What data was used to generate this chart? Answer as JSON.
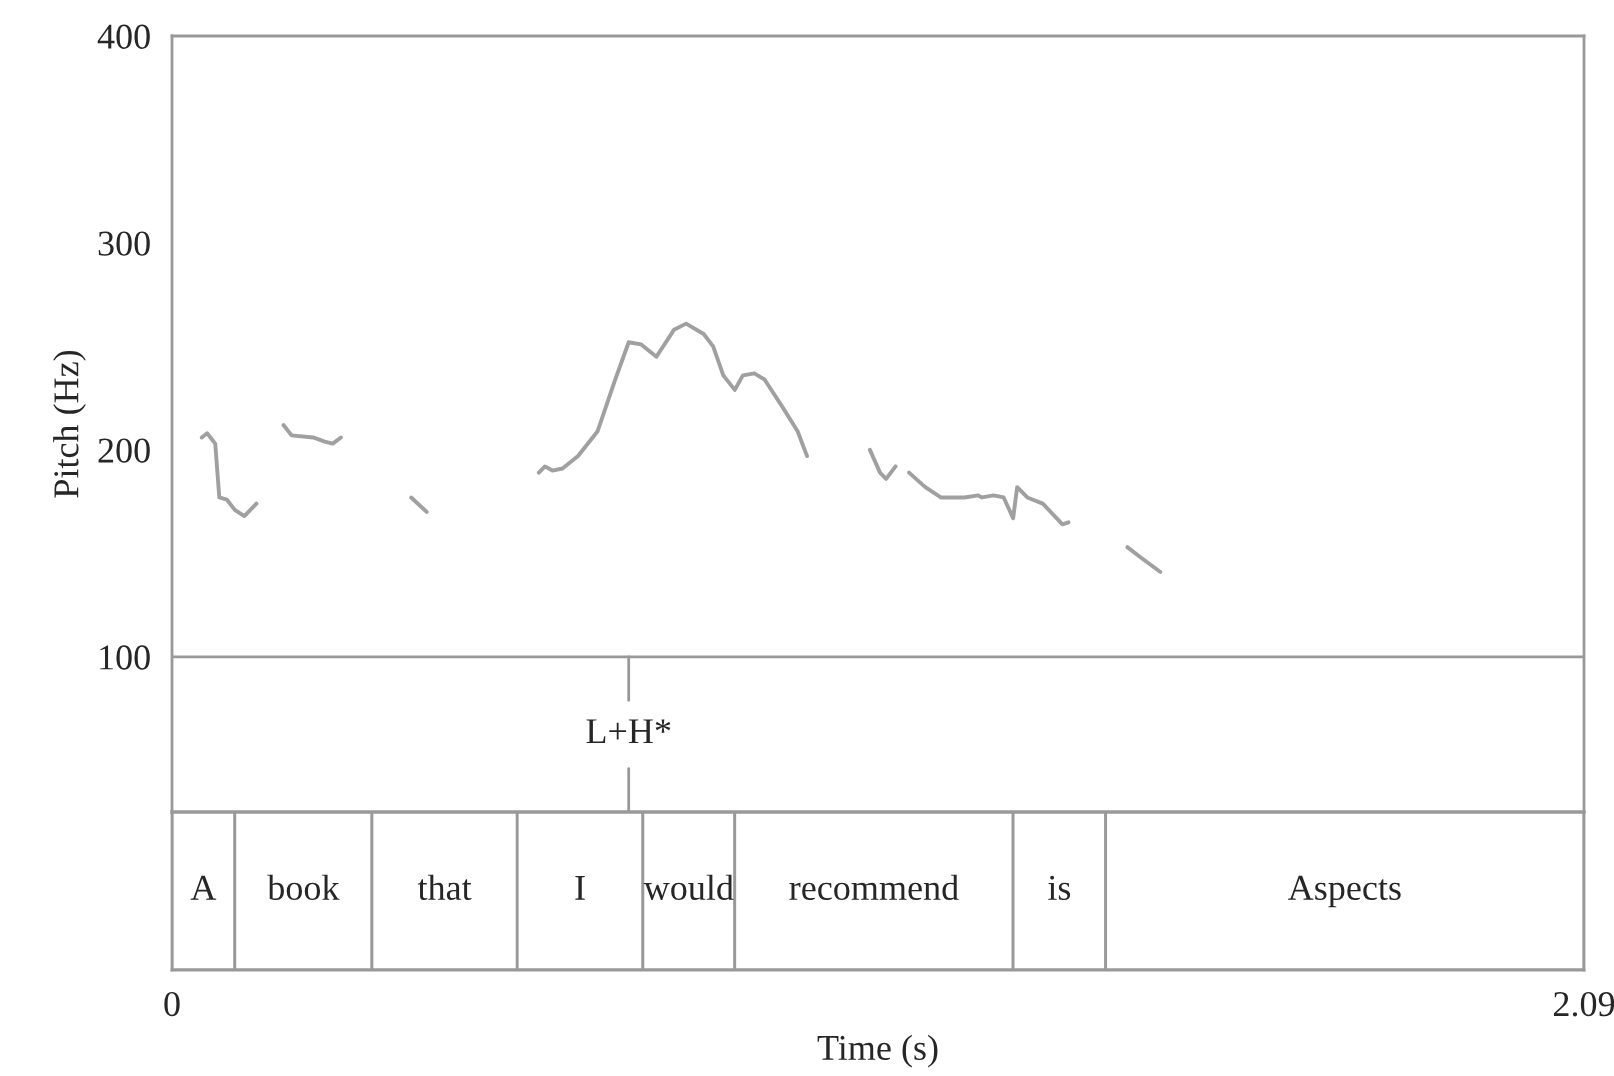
{
  "chart_data": [
    {
      "type": "line",
      "ylabel": "Pitch (Hz)",
      "xlim": [
        0,
        2.09
      ],
      "ylim": [
        25,
        400
      ],
      "yticks": [
        100,
        200,
        300,
        400
      ],
      "tick_labels": "y",
      "grid": false,
      "legend": false,
      "ref_lines": [
        {
          "axis": "y",
          "value": 100,
          "color": "#999999"
        },
        {
          "axis": "x",
          "value": 0.676,
          "label": "L+H*",
          "color": "#999999"
        }
      ],
      "series": [
        {
          "color": "#a0a0a0",
          "x": [
            0.044,
            0.052,
            0.064,
            0.07,
            0.081,
            0.093,
            0.107,
            0.125,
            0.14,
            0.165,
            0.177,
            0.209,
            0.226,
            0.238,
            0.25,
            0.3,
            0.354,
            0.377,
            0.45,
            0.543,
            0.552,
            0.563,
            0.578,
            0.601,
            0.63,
            0.656,
            0.676,
            0.694,
            0.717,
            0.743,
            0.761,
            0.787,
            0.801,
            0.816,
            0.833,
            0.845,
            0.862,
            0.877,
            0.903,
            0.926,
            0.94,
            1.0,
            1.033,
            1.048,
            1.057,
            1.071,
            1.08,
            1.091,
            1.115,
            1.138,
            1.173,
            1.193,
            1.199,
            1.216,
            1.231,
            1.245,
            1.251,
            1.266,
            1.289,
            1.318,
            1.327
          ],
          "values": [
            206,
            208,
            203,
            177,
            176,
            171,
            168,
            174,
            null,
            212,
            207,
            206,
            204,
            203,
            206,
            null,
            177,
            170,
            null,
            189,
            192,
            190,
            191,
            197,
            209,
            234,
            252,
            251,
            245,
            258,
            261,
            256,
            250,
            236,
            229,
            236,
            237,
            234,
            221,
            209,
            197,
            null,
            200,
            189,
            186,
            192,
            null,
            189,
            182,
            177,
            177,
            178,
            177,
            178,
            177,
            167,
            182,
            177,
            174,
            164,
            165
          ]
        },
        {
          "color": "#a0a0a0",
          "x": [
            1.414,
            1.434,
            1.463
          ],
          "values": [
            153,
            148,
            141
          ]
        }
      ]
    },
    {
      "type": "bar",
      "orientation": "horizontal",
      "stacked": true,
      "categories": [
        null
      ],
      "xlabel": "Time (s)",
      "xlim": [
        0,
        2.09
      ],
      "xticks": [
        0,
        2.09
      ],
      "tick_labels": "x",
      "series": [
        {
          "name": "A",
          "color": "#ffffff",
          "values": [
            0.093
          ]
        },
        {
          "name": "book",
          "color": "#ffffff",
          "values": [
            0.203
          ]
        },
        {
          "name": "that",
          "color": "#ffffff",
          "values": [
            0.215
          ]
        },
        {
          "name": "I",
          "color": "#ffffff",
          "values": [
            0.186
          ]
        },
        {
          "name": "would",
          "color": "#ffffff",
          "values": [
            0.136
          ]
        },
        {
          "name": "recommend",
          "color": "#ffffff",
          "values": [
            0.412
          ]
        },
        {
          "name": "is",
          "color": "#ffffff",
          "values": [
            0.137
          ]
        },
        {
          "name": "Aspects",
          "color": "#ffffff",
          "values": [
            0.708
          ]
        }
      ]
    }
  ]
}
